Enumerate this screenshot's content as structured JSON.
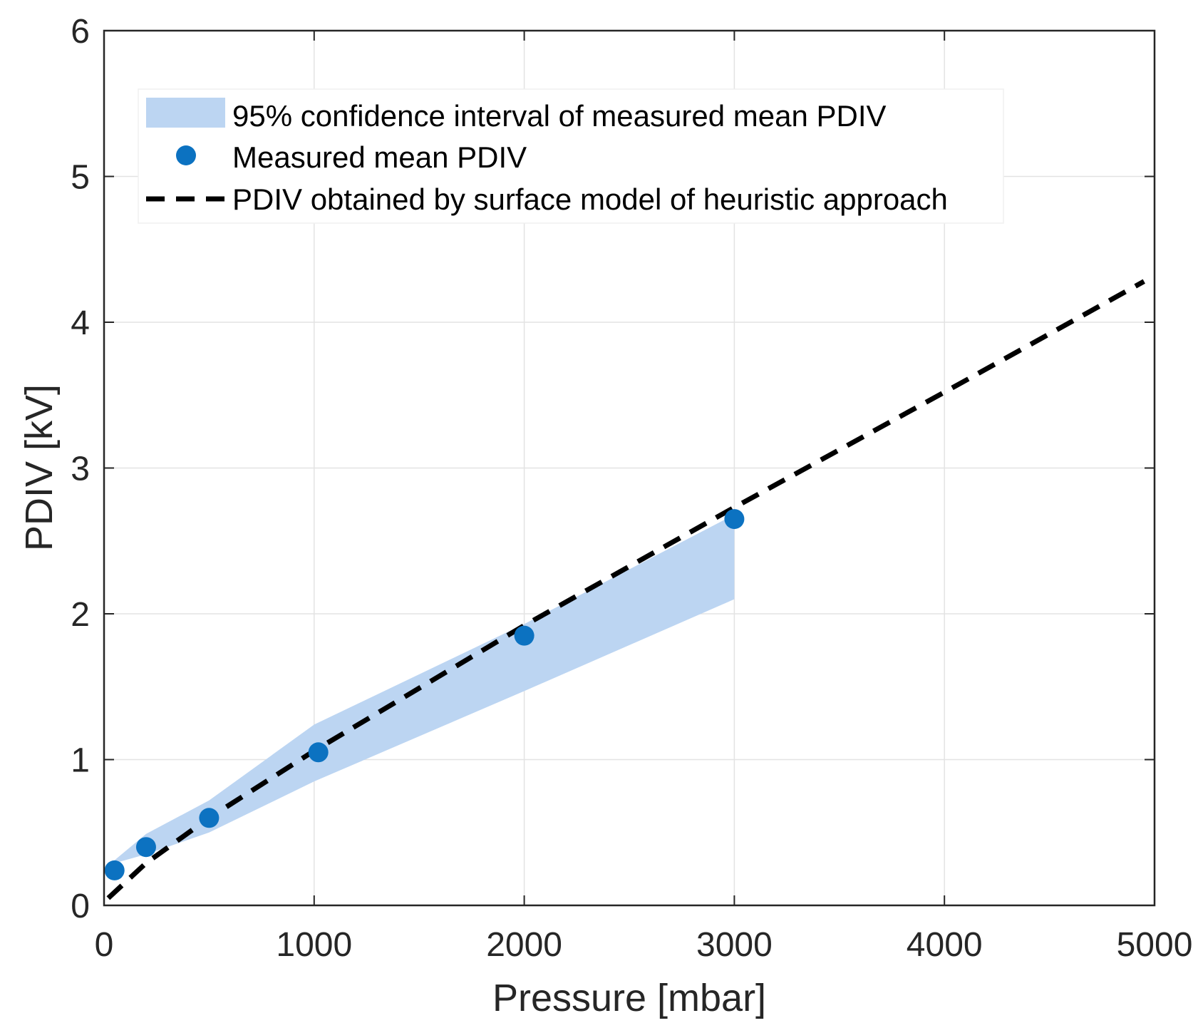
{
  "chart_data": {
    "type": "line",
    "title": "",
    "xlabel": "Pressure [mbar]",
    "ylabel": "PDIV [kV]",
    "xlim": [
      0,
      5000
    ],
    "ylim": [
      0,
      6
    ],
    "xticks": [
      0,
      1000,
      2000,
      3000,
      4000,
      5000
    ],
    "yticks": [
      0,
      1,
      2,
      3,
      4,
      5,
      6
    ],
    "xtick_labels": [
      "0",
      "1000",
      "2000",
      "3000",
      "4000",
      "5000"
    ],
    "ytick_labels": [
      "0",
      "1",
      "2",
      "3",
      "4",
      "5",
      "6"
    ],
    "grid": true,
    "legend_position": "top-left",
    "series": [
      {
        "name": "95% confidence interval of measured mean PDIV",
        "kind": "band",
        "color": "#bcd5f2",
        "x": [
          50,
          200,
          500,
          1000,
          2000,
          3000
        ],
        "lower": [
          0.29,
          0.35,
          0.5,
          0.85,
          1.47,
          2.1
        ],
        "upper": [
          0.31,
          0.49,
          0.72,
          1.24,
          1.93,
          2.68
        ]
      },
      {
        "name": "Measured mean PDIV",
        "kind": "scatter",
        "color": "#0c72c1",
        "x": [
          50,
          200,
          500,
          1020,
          2000,
          3000
        ],
        "y": [
          0.24,
          0.4,
          0.6,
          1.05,
          1.85,
          2.65
        ]
      },
      {
        "name": "PDIV obtained by surface model of heuristic approach",
        "kind": "dashed-line",
        "color": "#000000",
        "x": [
          20,
          200,
          500,
          1000,
          2000,
          3000,
          4000,
          4950
        ],
        "y": [
          0.05,
          0.29,
          0.6,
          1.06,
          1.92,
          2.73,
          3.52,
          4.28
        ]
      }
    ]
  }
}
